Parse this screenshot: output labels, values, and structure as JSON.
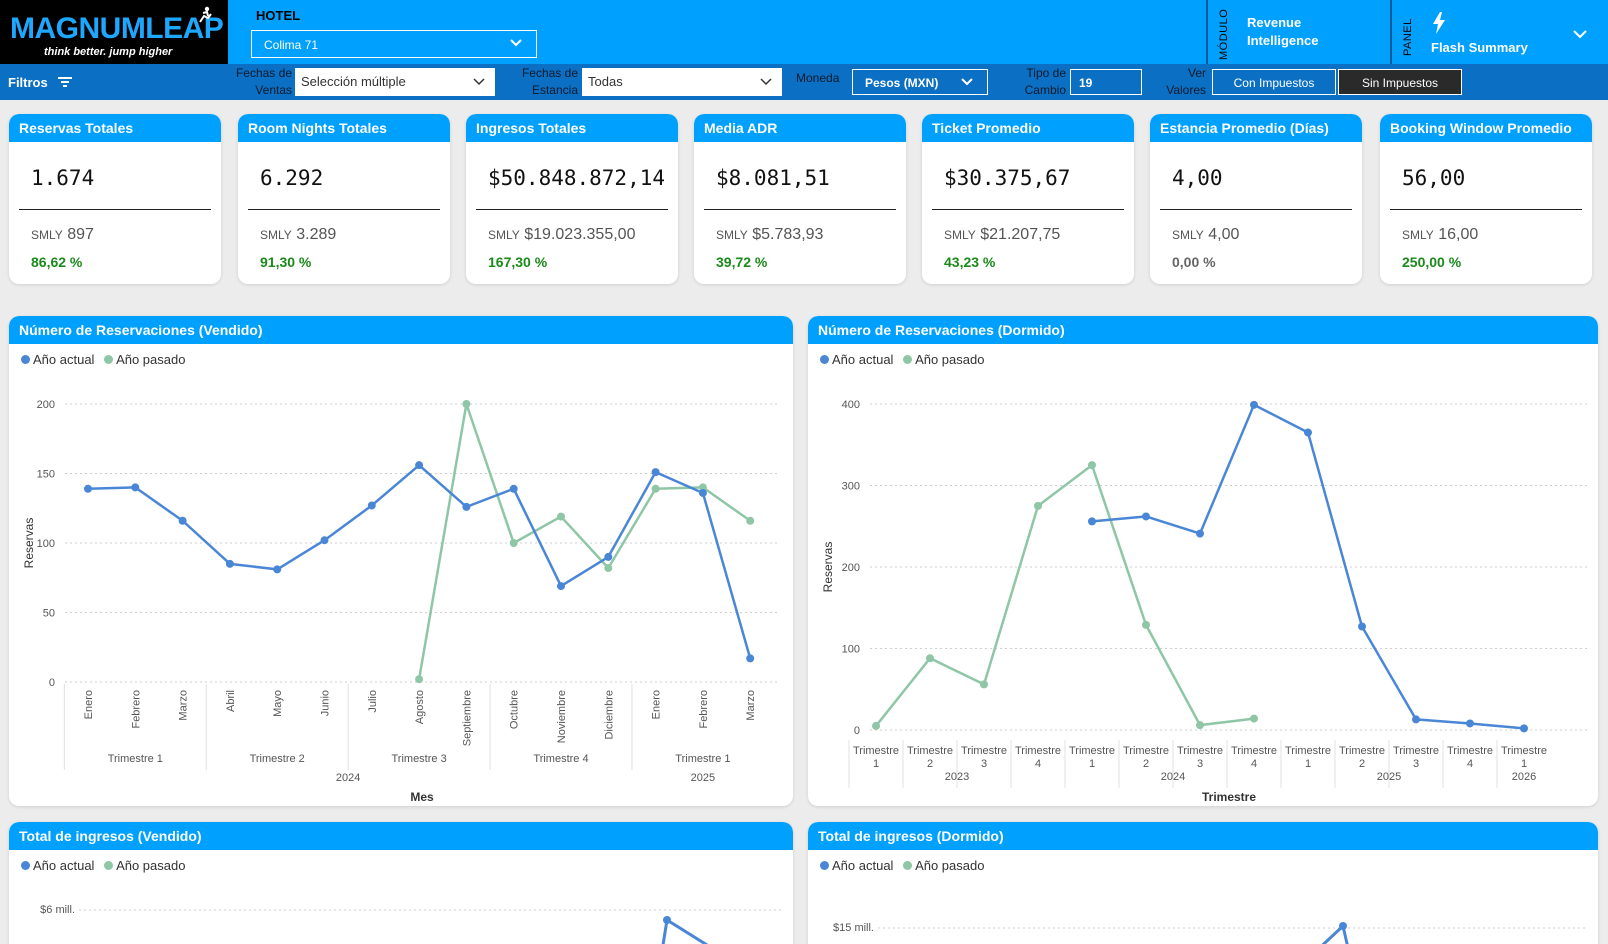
{
  "colors": {
    "accent": "#00a0ff",
    "filterbar": "#0b6fc4",
    "current": "#4a86d6",
    "previous": "#8ec6a6",
    "positive": "#1a8a1a"
  },
  "header": {
    "logo_text": "MAGNUMLEAP",
    "logo_tagline": "think better. jump higher",
    "hotel_label": "HOTEL",
    "hotel_value": "Colima 71",
    "module_label": "MÓDULO",
    "module_value": "Revenue Intelligence",
    "panel_label": "PANEL",
    "panel_value": "Flash Summary"
  },
  "filters": {
    "title": "Filtros",
    "sales_dates_label": "Fechas de Ventas",
    "sales_dates_value": "Selección múltiple",
    "stay_dates_label": "Fechas de Estancia",
    "stay_dates_value": "Todas",
    "currency_label": "Moneda",
    "currency_value": "Pesos (MXN)",
    "exchange_label": "Tipo de Cambio",
    "exchange_value": "19",
    "values_label": "Ver Valores",
    "with_tax": "Con Impuestos",
    "without_tax": "Sin Impuestos"
  },
  "kpis": [
    {
      "title": "Reservas Totales",
      "value": "1.674",
      "smly_label": "SMLY",
      "smly_value": "897",
      "pct": "86,62 %"
    },
    {
      "title": "Room Nights Totales",
      "value": "6.292",
      "smly_label": "SMLY",
      "smly_value": "3.289",
      "pct": "91,30 %"
    },
    {
      "title": "Ingresos Totales",
      "value": "$50.848.872,14",
      "smly_label": "SMLY",
      "smly_value": "$19.023.355,00",
      "pct": "167,30 %"
    },
    {
      "title": "Media ADR",
      "value": "$8.081,51",
      "smly_label": "SMLY",
      "smly_value": "$5.783,93",
      "pct": "39,72 %"
    },
    {
      "title": "Ticket Promedio",
      "value": "$30.375,67",
      "smly_label": "SMLY",
      "smly_value": "$21.207,75",
      "pct": "43,23 %"
    },
    {
      "title": "Estancia Promedio (Días)",
      "value": "4,00",
      "smly_label": "SMLY",
      "smly_value": "4,00",
      "pct": "0,00 %"
    },
    {
      "title": "Booking Window Promedio",
      "value": "56,00",
      "smly_label": "SMLY",
      "smly_value": "16,00",
      "pct": "250,00 %"
    }
  ],
  "legend": {
    "current": "Año actual",
    "previous": "Año pasado"
  },
  "charts_titles": {
    "c1": "Número de Reservaciones (Vendido)",
    "c2": "Número de Reservaciones (Dormido)",
    "c3": "Total de ingresos (Vendido)",
    "c4": "Total de ingresos (Dormido)"
  },
  "chart_data": [
    {
      "type": "line",
      "title": "Número de Reservaciones (Vendido)",
      "xlabel": "Mes",
      "ylabel": "Reservas",
      "ylim": [
        0,
        200
      ],
      "yticks": [
        0,
        50,
        100,
        150,
        200
      ],
      "categories": [
        "Enero",
        "Febrero",
        "Marzo",
        "Abril",
        "Mayo",
        "Junio",
        "Julio",
        "Agosto",
        "Septiembre",
        "Octubre",
        "Noviembre",
        "Diciembre",
        "Enero",
        "Febrero",
        "Marzo"
      ],
      "quarters": [
        {
          "label": "Trimestre 1",
          "start": 0,
          "end": 2
        },
        {
          "label": "Trimestre 2",
          "start": 3,
          "end": 5
        },
        {
          "label": "Trimestre 3",
          "start": 6,
          "end": 8
        },
        {
          "label": "Trimestre 4",
          "start": 9,
          "end": 11
        },
        {
          "label": "Trimestre 1",
          "start": 12,
          "end": 14
        }
      ],
      "years": [
        {
          "label": "2024",
          "start": 0,
          "end": 11
        },
        {
          "label": "2025",
          "start": 12,
          "end": 14
        }
      ],
      "series": [
        {
          "name": "Año actual",
          "values": [
            139,
            140,
            116,
            85,
            81,
            102,
            127,
            156,
            126,
            139,
            69,
            90,
            151,
            136,
            17
          ]
        },
        {
          "name": "Año pasado",
          "values": [
            null,
            null,
            null,
            null,
            null,
            null,
            null,
            2,
            200,
            100,
            119,
            82,
            139,
            140,
            116
          ]
        }
      ]
    },
    {
      "type": "line",
      "title": "Número de Reservaciones (Dormido)",
      "xlabel": "Trimestre",
      "ylabel": "Reservas",
      "ylim": [
        0,
        400
      ],
      "yticks": [
        0,
        100,
        200,
        300,
        400
      ],
      "categories": [
        "Trimestre 1",
        "Trimestre 2",
        "Trimestre 3",
        "Trimestre 4",
        "Trimestre 1",
        "Trimestre 2",
        "Trimestre 3",
        "Trimestre 4",
        "Trimestre 1",
        "Trimestre 2",
        "Trimestre 3",
        "Trimestre 4",
        "Trimestre 1"
      ],
      "years": [
        {
          "label": "2023",
          "start": 0,
          "end": 3
        },
        {
          "label": "2024",
          "start": 4,
          "end": 7
        },
        {
          "label": "2025",
          "start": 8,
          "end": 11
        },
        {
          "label": "2026",
          "start": 12,
          "end": 12
        }
      ],
      "series": [
        {
          "name": "Año actual",
          "values": [
            null,
            null,
            null,
            null,
            256,
            262,
            241,
            399,
            365,
            127,
            13,
            8,
            2
          ]
        },
        {
          "name": "Año pasado",
          "values": [
            5,
            88,
            56,
            275,
            325,
            129,
            6,
            14,
            null,
            null,
            null,
            null,
            null
          ]
        }
      ]
    },
    {
      "type": "line",
      "title": "Total de ingresos (Vendido)",
      "yticks_visible": [
        "$6 mill."
      ],
      "series": [
        {
          "name": "Año actual",
          "values": []
        },
        {
          "name": "Año pasado",
          "values": []
        }
      ]
    },
    {
      "type": "line",
      "title": "Total de ingresos (Dormido)",
      "yticks_visible": [
        "$15 mill."
      ],
      "series": [
        {
          "name": "Año actual",
          "values": []
        },
        {
          "name": "Año pasado",
          "values": []
        }
      ]
    }
  ]
}
